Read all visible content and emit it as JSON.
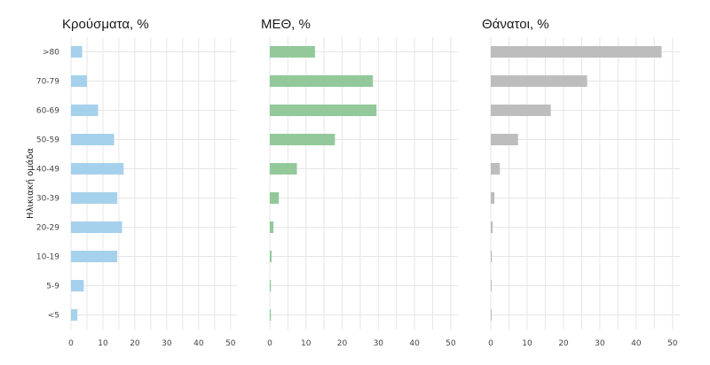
{
  "chart_data": {
    "type": "bar",
    "orientation": "horizontal",
    "ylabel": "Ηλικιακή ομάδα",
    "categories": [
      ">80",
      "70-79",
      "60-69",
      "50-59",
      "40-49",
      "30-39",
      "20-29",
      "10-19",
      "5-9",
      "<5"
    ],
    "xlim": [
      0,
      52
    ],
    "x_ticks": [
      0,
      10,
      20,
      30,
      40,
      50
    ],
    "grid": true,
    "series": [
      {
        "name": "Κρούσματα, %",
        "color": "#a6d1ec",
        "values": [
          3.5,
          5,
          8.5,
          13.5,
          16.5,
          14.5,
          16,
          14.5,
          4,
          2
        ]
      },
      {
        "name": "ΜΕΘ, %",
        "color": "#93c99a",
        "values": [
          12.5,
          28.5,
          29.5,
          18,
          7.5,
          2.5,
          1,
          0.5,
          0.3,
          0.3
        ]
      },
      {
        "name": "Θάνατοι, %",
        "color": "#bdbdbd",
        "values": [
          47,
          26.5,
          16.5,
          7.5,
          2.5,
          1,
          0.5,
          0.3,
          0.2,
          0.2
        ]
      }
    ]
  }
}
